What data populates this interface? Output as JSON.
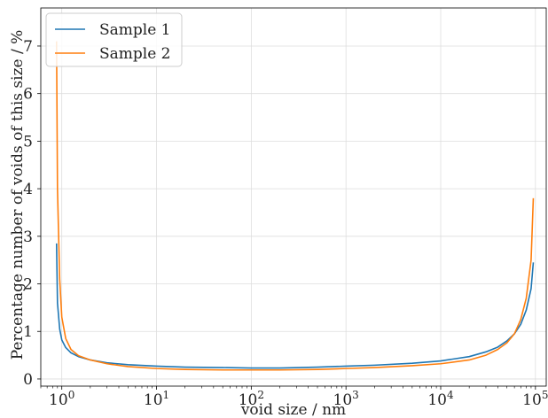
{
  "chart_data": {
    "type": "line",
    "title": "",
    "xlabel": "void size / nm",
    "ylabel": "Percentage number of voids of this size / %",
    "xscale": "log",
    "xlim": [
      0.6,
      130000
    ],
    "ylim": [
      -0.15,
      7.8
    ],
    "grid": true,
    "legend": {
      "position": "top-left"
    },
    "x_ticks": [
      {
        "value": 1,
        "base": "10",
        "exp": "0"
      },
      {
        "value": 10,
        "base": "10",
        "exp": "1"
      },
      {
        "value": 100,
        "base": "10",
        "exp": "2"
      },
      {
        "value": 1000,
        "base": "10",
        "exp": "3"
      },
      {
        "value": 10000,
        "base": "10",
        "exp": "4"
      },
      {
        "value": 100000,
        "base": "10",
        "exp": "5"
      }
    ],
    "y_ticks": [
      {
        "value": 0,
        "label": "0"
      },
      {
        "value": 1,
        "label": "1"
      },
      {
        "value": 2,
        "label": "2"
      },
      {
        "value": 3,
        "label": "3"
      },
      {
        "value": 4,
        "label": "4"
      },
      {
        "value": 5,
        "label": "5"
      },
      {
        "value": 6,
        "label": "6"
      },
      {
        "value": 7,
        "label": "7"
      }
    ],
    "series": [
      {
        "name": "Sample 1",
        "color": "#1f77b4",
        "points": [
          [
            0.88,
            2.85
          ],
          [
            0.9,
            1.6
          ],
          [
            0.95,
            1.05
          ],
          [
            1.0,
            0.82
          ],
          [
            1.1,
            0.66
          ],
          [
            1.25,
            0.55
          ],
          [
            1.5,
            0.47
          ],
          [
            2,
            0.4
          ],
          [
            3,
            0.34
          ],
          [
            5,
            0.3
          ],
          [
            10,
            0.27
          ],
          [
            20,
            0.25
          ],
          [
            50,
            0.24
          ],
          [
            100,
            0.23
          ],
          [
            200,
            0.23
          ],
          [
            500,
            0.25
          ],
          [
            1000,
            0.27
          ],
          [
            2000,
            0.29
          ],
          [
            5000,
            0.33
          ],
          [
            10000,
            0.38
          ],
          [
            20000,
            0.47
          ],
          [
            30000,
            0.57
          ],
          [
            40000,
            0.67
          ],
          [
            50000,
            0.8
          ],
          [
            60000,
            0.95
          ],
          [
            70000,
            1.15
          ],
          [
            80000,
            1.45
          ],
          [
            90000,
            1.9
          ],
          [
            95000,
            2.45
          ]
        ]
      },
      {
        "name": "Sample 2",
        "color": "#ff7f0e",
        "points": [
          [
            0.88,
            7.1
          ],
          [
            0.9,
            4.0
          ],
          [
            0.95,
            2.1
          ],
          [
            1.0,
            1.3
          ],
          [
            1.1,
            0.85
          ],
          [
            1.25,
            0.62
          ],
          [
            1.5,
            0.49
          ],
          [
            2,
            0.4
          ],
          [
            3,
            0.32
          ],
          [
            5,
            0.26
          ],
          [
            10,
            0.22
          ],
          [
            20,
            0.2
          ],
          [
            50,
            0.19
          ],
          [
            100,
            0.19
          ],
          [
            200,
            0.19
          ],
          [
            500,
            0.2
          ],
          [
            1000,
            0.22
          ],
          [
            2000,
            0.24
          ],
          [
            5000,
            0.28
          ],
          [
            10000,
            0.32
          ],
          [
            20000,
            0.4
          ],
          [
            30000,
            0.5
          ],
          [
            40000,
            0.62
          ],
          [
            50000,
            0.76
          ],
          [
            60000,
            0.95
          ],
          [
            70000,
            1.25
          ],
          [
            80000,
            1.7
          ],
          [
            90000,
            2.5
          ],
          [
            95000,
            3.8
          ]
        ]
      }
    ]
  }
}
